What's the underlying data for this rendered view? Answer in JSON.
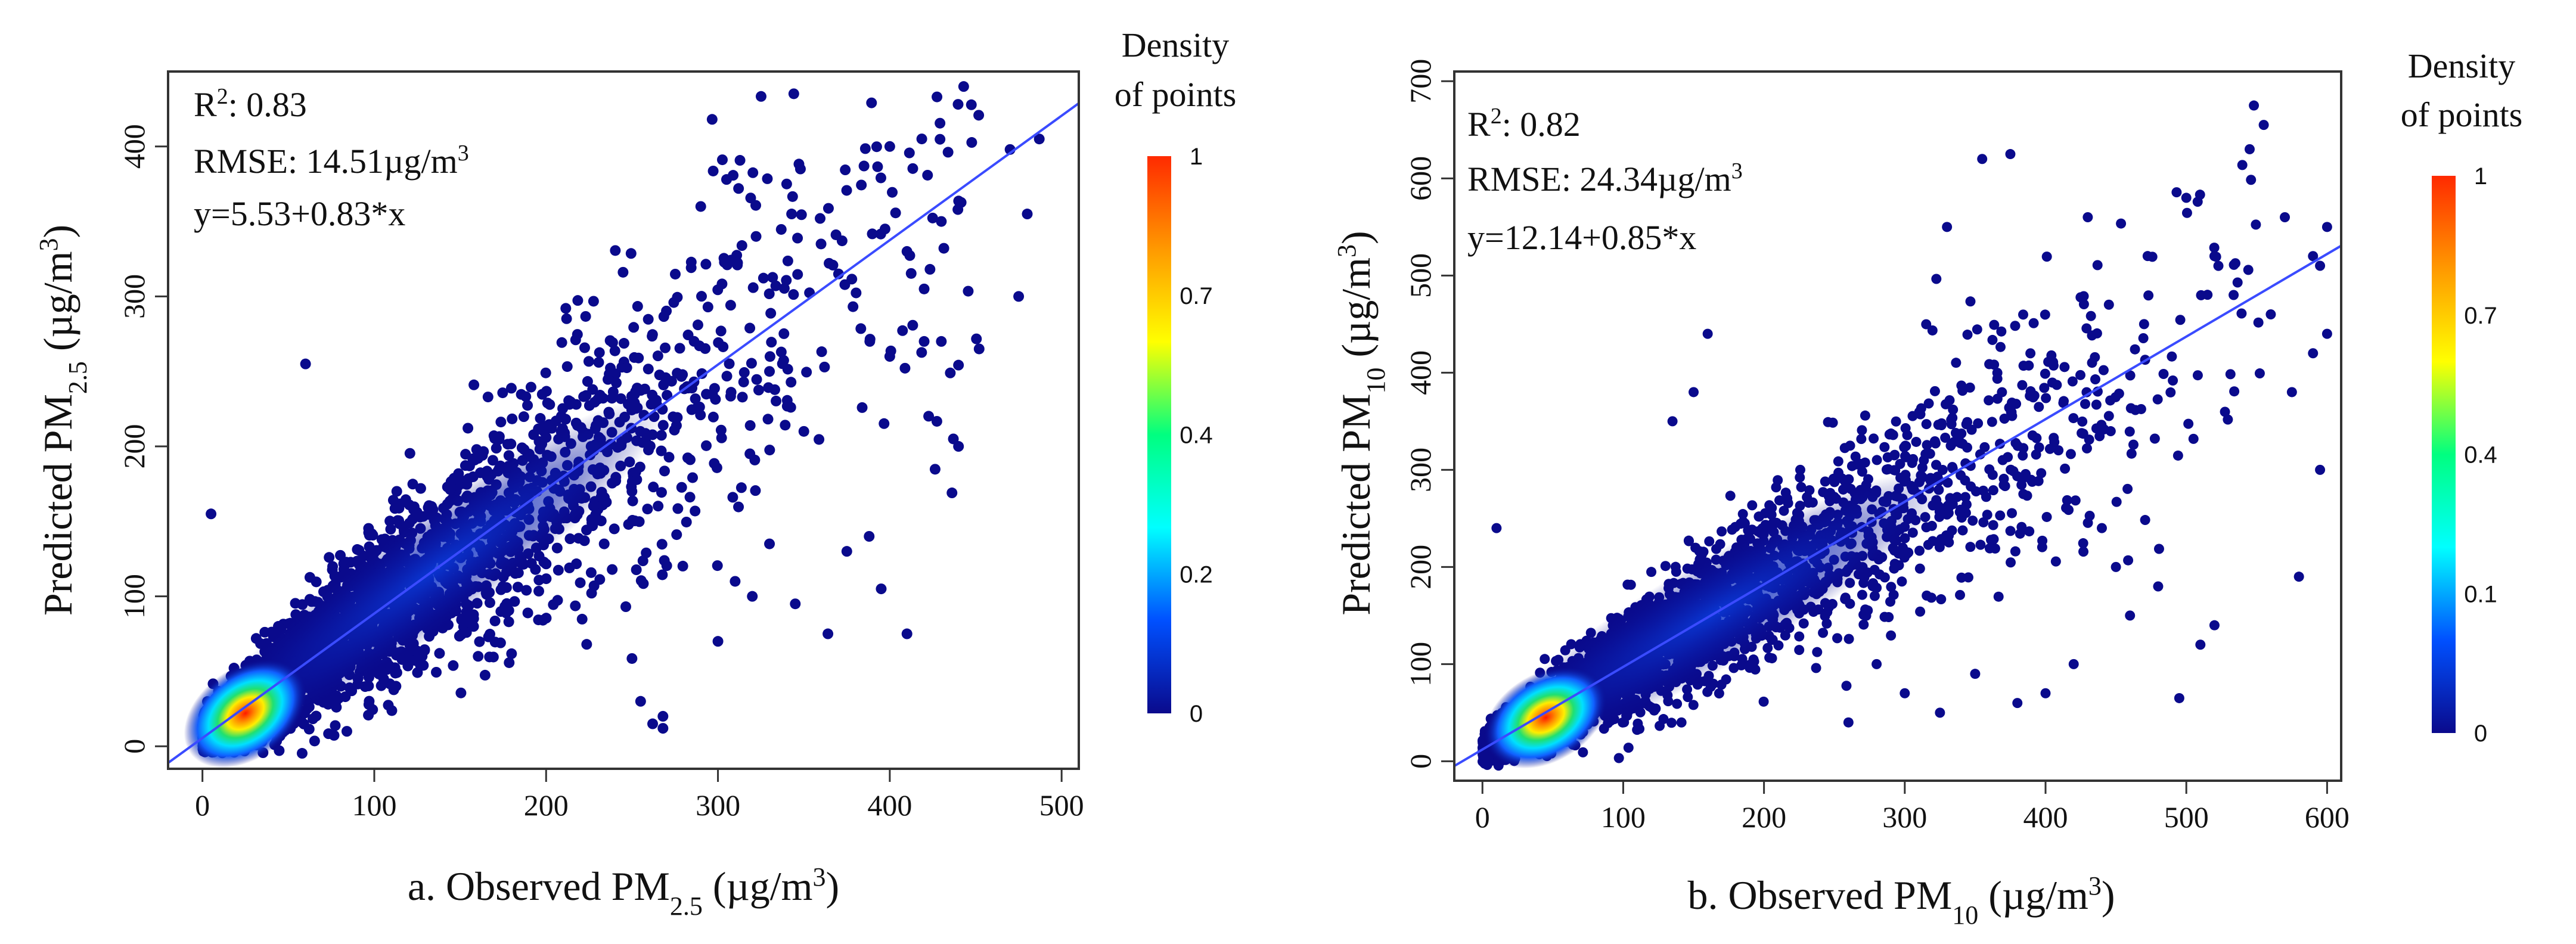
{
  "chart_data": [
    {
      "type": "scatter",
      "panel": "a",
      "title": "",
      "xlabel": {
        "prefix": "a. Observed PM",
        "sub": "2.5",
        "unit": " (µg/m",
        "sup": "3",
        "close": ")"
      },
      "ylabel": {
        "prefix": "Predicted PM",
        "sub": "2.5",
        "unit": " (µg/m",
        "sup": "3",
        "close": ")"
      },
      "xlim": [
        -20,
        510
      ],
      "ylim": [
        -15,
        450
      ],
      "xticks": [
        0,
        100,
        200,
        300,
        400,
        500
      ],
      "yticks": [
        0,
        100,
        200,
        300,
        400
      ],
      "annotations": {
        "r2_label": "R",
        "r2_sup": "2",
        "r2_value": ": 0.83",
        "rmse_label": "RMSE: 14.51µg/m",
        "rmse_sup": "3",
        "equation": "y=5.53+0.83*x"
      },
      "fit": {
        "intercept": 5.53,
        "slope": 0.83
      },
      "point_color": "#0a0a8c",
      "fit_color": "#3a4bff",
      "density_peak": {
        "x": 25,
        "y": 22
      },
      "spread": {
        "x_max": 490,
        "y_max": 440
      },
      "outlier_points": [
        [
          443,
          440
        ],
        [
          470,
          398
        ],
        [
          487,
          405
        ],
        [
          480,
          355
        ],
        [
          475,
          300
        ],
        [
          452,
          265
        ],
        [
          440,
          200
        ],
        [
          437,
          205
        ],
        [
          410,
          75
        ],
        [
          395,
          105
        ],
        [
          400,
          400
        ],
        [
          385,
          387
        ],
        [
          360,
          335
        ],
        [
          348,
          385
        ],
        [
          340,
          375
        ],
        [
          420,
          305
        ],
        [
          430,
          350
        ],
        [
          375,
          130
        ],
        [
          364,
          75
        ],
        [
          345,
          95
        ],
        [
          330,
          135
        ],
        [
          320,
          100
        ],
        [
          310,
          110
        ],
        [
          268,
          20
        ],
        [
          262,
          15
        ],
        [
          268,
          12
        ],
        [
          255,
          30
        ],
        [
          300,
          70
        ],
        [
          60,
          255
        ],
        [
          5,
          155
        ],
        [
          400,
          260
        ],
        [
          420,
          270
        ],
        [
          430,
          270
        ],
        [
          388,
          140
        ],
        [
          410,
          330
        ],
        [
          350,
          210
        ],
        [
          330,
          250
        ],
        [
          305,
          378
        ],
        [
          312,
          372
        ],
        [
          290,
          360
        ]
      ],
      "colorbar": {
        "title_line1": "Density",
        "title_line2": "of points",
        "tick_labels": [
          "1",
          "0.7",
          "0.4",
          "0.2",
          "0"
        ],
        "tick_values": [
          1,
          0.7,
          0.4,
          0.2,
          0
        ],
        "stops": [
          "#ff2a00",
          "#ff9900",
          "#ffff00",
          "#00ff80",
          "#00ffff",
          "#0050ff",
          "#0a0a8c"
        ]
      }
    },
    {
      "type": "scatter",
      "panel": "b",
      "title": "",
      "xlabel": {
        "prefix": "b. Observed PM",
        "sub": "10",
        "unit": " (µg/m",
        "sup": "3",
        "close": ")"
      },
      "ylabel": {
        "prefix": "Predicted PM",
        "sub": "10",
        "unit": " (µg/m",
        "sup": "3",
        "close": ")"
      },
      "xlim": [
        -20,
        610
      ],
      "ylim": [
        -20,
        710
      ],
      "xticks": [
        0,
        100,
        200,
        300,
        400,
        500,
        600
      ],
      "yticks": [
        0,
        100,
        200,
        300,
        400,
        500,
        600,
        700
      ],
      "annotations": {
        "r2_label": "R",
        "r2_sup": "2",
        "r2_value": ": 0.82",
        "rmse_label": "RMSE: 24.34µg/m",
        "rmse_sup": "3",
        "equation": "y=12.14+0.85*x"
      },
      "fit": {
        "intercept": 12.14,
        "slope": 0.85
      },
      "point_color": "#0a0a8c",
      "fit_color": "#3a4bff",
      "density_peak": {
        "x": 45,
        "y": 45
      },
      "spread": {
        "x_max": 600,
        "y_max": 680
      },
      "outlier_points": [
        [
          548,
          675
        ],
        [
          555,
          655
        ],
        [
          545,
          630
        ],
        [
          500,
          580
        ],
        [
          570,
          560
        ],
        [
          600,
          550
        ],
        [
          590,
          520
        ],
        [
          595,
          510
        ],
        [
          580,
          190
        ],
        [
          595,
          300
        ],
        [
          520,
          140
        ],
        [
          510,
          120
        ],
        [
          495,
          65
        ],
        [
          375,
          625
        ],
        [
          355,
          620
        ],
        [
          330,
          550
        ],
        [
          160,
          440
        ],
        [
          150,
          380
        ],
        [
          135,
          350
        ],
        [
          10,
          240
        ],
        [
          480,
          180
        ],
        [
          460,
          150
        ],
        [
          450,
          200
        ],
        [
          440,
          240
        ],
        [
          420,
          100
        ],
        [
          400,
          70
        ],
        [
          380,
          60
        ],
        [
          350,
          90
        ],
        [
          325,
          50
        ],
        [
          300,
          70
        ],
        [
          260,
          40
        ],
        [
          280,
          100
        ],
        [
          600,
          440
        ],
        [
          560,
          460
        ],
        [
          590,
          420
        ],
        [
          575,
          380
        ],
        [
          430,
          560
        ],
        [
          445,
          470
        ],
        [
          470,
          450
        ],
        [
          520,
          520
        ]
      ],
      "colorbar": {
        "title_line1": "Density",
        "title_line2": "of points",
        "tick_labels": [
          "1",
          "0.7",
          "0.4",
          "0.1",
          "0"
        ],
        "tick_values": [
          1,
          0.7,
          0.4,
          0.1,
          0
        ],
        "stops": [
          "#ff2a00",
          "#ff9900",
          "#ffff00",
          "#00ff80",
          "#00ffff",
          "#0050ff",
          "#0a0a8c"
        ]
      }
    }
  ]
}
